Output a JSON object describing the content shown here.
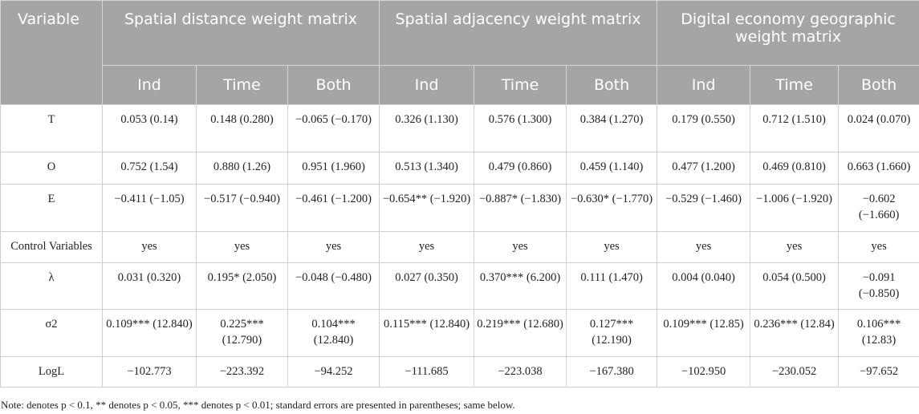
{
  "table": {
    "variable_header": "Variable",
    "groups": [
      "Spatial distance weight matrix",
      "Spatial adjacency weight matrix",
      "Digital economy geographic weight matrix"
    ],
    "subheaders": [
      "Ind",
      "Time",
      "Both",
      "Ind",
      "Time",
      "Both",
      "Ind",
      "Time",
      "Both"
    ],
    "rows": [
      {
        "label": "T",
        "cells": [
          "0.053 (0.14)",
          "0.148 (0.280)",
          "−0.065 (−0.170)",
          "0.326 (1.130)",
          "0.576 (1.300)",
          "0.384 (1.270)",
          "0.179 (0.550)",
          "0.712 (1.510)",
          "0.024 (0.070)"
        ]
      },
      {
        "label": "O",
        "cells": [
          "0.752 (1.54)",
          "0.880 (1.26)",
          "0.951 (1.960)",
          "0.513 (1.340)",
          "0.479 (0.860)",
          "0.459 (1.140)",
          "0.477 (1.200)",
          "0.469 (0.810)",
          "0.663 (1.660)"
        ]
      },
      {
        "label": "E",
        "cells": [
          "−0.411 (−1.05)",
          "−0.517 (−0.940)",
          "−0.461 (−1.200)",
          "−0.654** (−1.920)",
          "−0.887* (−1.830)",
          "−0.630* (−1.770)",
          "−0.529 (−1.460)",
          "−1.006 (−1.920)",
          "−0.602 (−1.660)"
        ]
      },
      {
        "label": "Control Variables",
        "cells": [
          "yes",
          "yes",
          "yes",
          "yes",
          "yes",
          "yes",
          "yes",
          "yes",
          "yes"
        ]
      },
      {
        "label": "λ",
        "cells": [
          "0.031 (0.320)",
          "0.195* (2.050)",
          "−0.048 (−0.480)",
          "0.027 (0.350)",
          "0.370*** (6.200)",
          "0.111 (1.470)",
          "0.004 (0.040)",
          "0.054 (0.500)",
          "−0.091 (−0.850)"
        ]
      },
      {
        "label": "σ2",
        "cells": [
          "0.109*** (12.840)",
          "0.225*** (12.790)",
          "0.104*** (12.840)",
          "0.115*** (12.840)",
          "0.219*** (12.680)",
          "0.127*** (12.190)",
          "0.109*** (12.85)",
          "0.236*** (12.84)",
          "0.106*** (12.83)"
        ]
      },
      {
        "label": "LogL",
        "cells": [
          "−102.773",
          "−223.392",
          "−94.252",
          "−111.685",
          "−223.038",
          "−167.380",
          "−102.950",
          "−230.052",
          "−97.652"
        ]
      }
    ],
    "note": "Note: denotes p < 0.1, ** denotes p < 0.05, *** denotes p < 0.01; standard errors are presented in parentheses; same below."
  }
}
